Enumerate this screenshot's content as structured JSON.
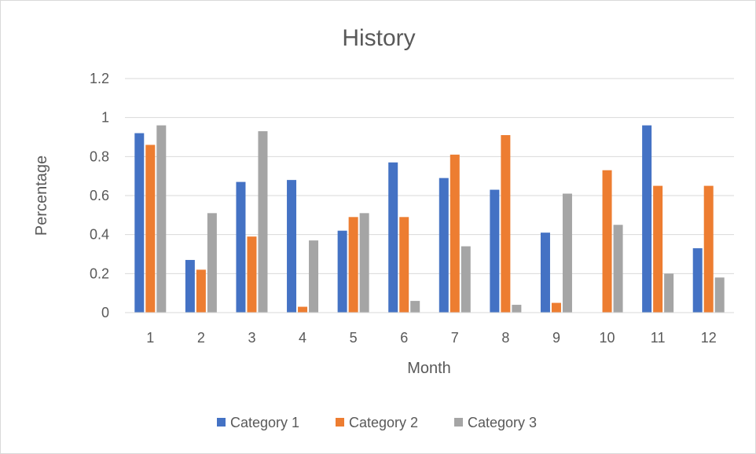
{
  "chart_data": {
    "type": "bar",
    "title": "History",
    "xlabel": "Month",
    "ylabel": "Percentage",
    "categories": [
      "1",
      "2",
      "3",
      "4",
      "5",
      "6",
      "7",
      "8",
      "9",
      "10",
      "11",
      "12"
    ],
    "y_ticks": [
      "0",
      "0.2",
      "0.4",
      "0.6",
      "0.8",
      "1",
      "1.2"
    ],
    "ylim": [
      0,
      1.2
    ],
    "grid": true,
    "legend_position": "bottom",
    "series": [
      {
        "name": "Category 1",
        "color": "#4472C4",
        "values": [
          0.92,
          0.27,
          0.67,
          0.68,
          0.42,
          0.77,
          0.69,
          0.63,
          0.41,
          0.0,
          0.96,
          0.33
        ]
      },
      {
        "name": "Category 2",
        "color": "#ED7D31",
        "values": [
          0.86,
          0.22,
          0.39,
          0.03,
          0.49,
          0.49,
          0.81,
          0.91,
          0.05,
          0.73,
          0.65,
          0.65
        ]
      },
      {
        "name": "Category 3",
        "color": "#A5A5A5",
        "values": [
          0.96,
          0.51,
          0.93,
          0.37,
          0.51,
          0.06,
          0.34,
          0.04,
          0.61,
          0.45,
          0.2,
          0.18
        ]
      }
    ]
  }
}
